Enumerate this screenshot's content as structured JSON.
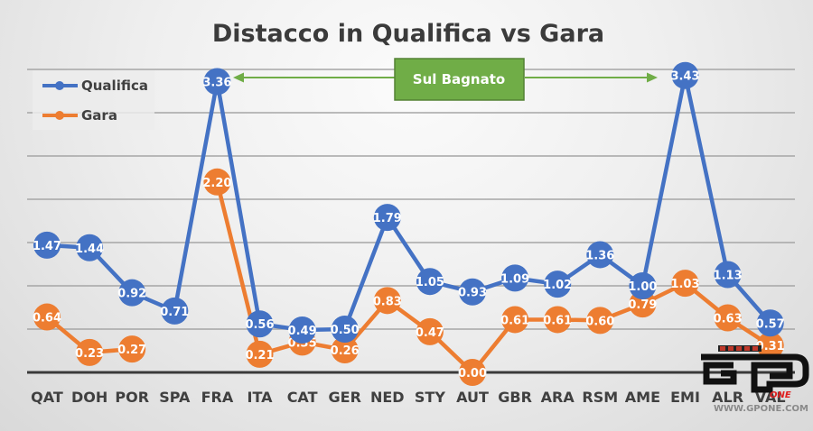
{
  "chart_data": {
    "type": "line",
    "title": "Distacco in Qualifica vs Gara",
    "xlabel": "",
    "ylabel": "",
    "ylim": [
      0,
      3.5
    ],
    "grid": true,
    "legend_position": "top-left",
    "categories": [
      "QAT",
      "DOH",
      "POR",
      "SPA",
      "FRA",
      "ITA",
      "CAT",
      "GER",
      "NED",
      "STY",
      "AUT",
      "GBR",
      "ARA",
      "RSM",
      "AME",
      "EMI",
      "ALR",
      "VAL"
    ],
    "series": [
      {
        "name": "Qualifica",
        "color": "#4472C4",
        "values": [
          1.47,
          1.44,
          0.92,
          0.71,
          3.36,
          0.56,
          0.49,
          0.5,
          1.79,
          1.05,
          0.93,
          1.09,
          1.02,
          1.36,
          1.0,
          3.43,
          1.13,
          0.57
        ]
      },
      {
        "name": "Gara",
        "color": "#ED7D31",
        "values": [
          0.64,
          0.23,
          0.27,
          null,
          2.2,
          0.21,
          0.35,
          0.26,
          0.83,
          0.47,
          0.0,
          0.61,
          0.61,
          0.6,
          0.79,
          1.03,
          0.63,
          0.31
        ]
      }
    ],
    "annotations": [
      {
        "text": "Sul Bagnato",
        "from": "FRA",
        "to": "EMI",
        "color": "#70AD47"
      }
    ]
  },
  "legend": {
    "items": [
      {
        "label": "Qualifica",
        "color": "#4472C4"
      },
      {
        "label": "Gara",
        "color": "#ED7D31"
      }
    ]
  },
  "annotation": {
    "label": "Sul Bagnato",
    "color": "#70AD47"
  },
  "watermark": {
    "brand": "GP",
    "sub": "ONE",
    "url": "WWW.GPONE.COM"
  }
}
